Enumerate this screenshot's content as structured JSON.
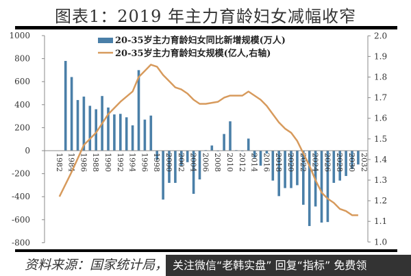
{
  "title": "图表1：2019 年主力育龄妇女减幅收窄",
  "source": "资料来源：国家统计局，",
  "overlay_text": "关注微信“老韩实盘” 回复“指标” 免费领",
  "colors": {
    "bar": "#4a7fa8",
    "line": "#d79a5c"
  },
  "chart_data": {
    "type": "bar+line",
    "title": "图表1：2019 年主力育龄妇女减幅收窄",
    "legend_position": "top-center",
    "grid": false,
    "left_axis": {
      "ylim": [
        -800,
        1000
      ],
      "ticks": [
        1000,
        800,
        600,
        400,
        200,
        0,
        -200,
        -400,
        -600,
        -800
      ]
    },
    "right_axis": {
      "ylim": [
        1.0,
        2.0
      ],
      "ticks": [
        "2.0",
        "1.9",
        "1.8",
        "1.7",
        "1.6",
        "1.5",
        "1.4",
        "1.3",
        "1.2",
        "1.1",
        "1.0"
      ]
    },
    "x_tick_labels": [
      "1982",
      "1984",
      "1986",
      "1988",
      "1990",
      "1992",
      "1994",
      "1996",
      "1998",
      "2000",
      "2002",
      "2004",
      "2006",
      "2008",
      "2010",
      "2012",
      "2014",
      "2016",
      "2018",
      "2020",
      "2022",
      "2024",
      "2026",
      "2028",
      "2030",
      "2032"
    ],
    "series": [
      {
        "name": "20-35岁主力育龄妇女同比新增规模(万人)",
        "type": "bar",
        "axis": "left",
        "x": [
          1983,
          1984,
          1985,
          1986,
          1987,
          1988,
          1989,
          1990,
          1991,
          1992,
          1993,
          1994,
          1995,
          1996,
          1997,
          1998,
          1999,
          2000,
          2001,
          2002,
          2003,
          2004,
          2005,
          2006,
          2007,
          2008,
          2009,
          2010,
          2011,
          2012,
          2013,
          2014,
          2015,
          2016,
          2017,
          2018,
          2019,
          2020,
          2021,
          2022,
          2023,
          2024,
          2025,
          2026,
          2027,
          2028,
          2029,
          2030,
          2031
        ],
        "values": [
          780,
          640,
          440,
          470,
          390,
          360,
          475,
          375,
          315,
          320,
          290,
          220,
          700,
          270,
          305,
          -80,
          -425,
          -280,
          -280,
          -130,
          -100,
          -375,
          -250,
          5,
          45,
          -5,
          145,
          255,
          5,
          -5,
          105,
          -60,
          -130,
          -25,
          -260,
          -395,
          -325,
          -325,
          -300,
          -470,
          -655,
          -485,
          -625,
          -620,
          -280,
          -260,
          -220,
          -160,
          -120
        ]
      },
      {
        "name": "20-35岁主力育龄妇女规模(亿人,右轴)",
        "type": "line",
        "axis": "right",
        "x": [
          1982,
          1984,
          1986,
          1988,
          1990,
          1992,
          1994,
          1995,
          1996,
          1997,
          1998,
          1999,
          2000,
          2001,
          2002,
          2003,
          2004,
          2005,
          2006,
          2008,
          2009,
          2010,
          2011,
          2012,
          2013,
          2014,
          2015,
          2016,
          2017,
          2018,
          2019,
          2020,
          2021,
          2022,
          2023,
          2024,
          2025,
          2026,
          2027,
          2028,
          2029,
          2030,
          2031
        ],
        "values": [
          1.22,
          1.34,
          1.47,
          1.53,
          1.62,
          1.68,
          1.73,
          1.8,
          1.83,
          1.86,
          1.85,
          1.81,
          1.78,
          1.75,
          1.74,
          1.72,
          1.69,
          1.67,
          1.67,
          1.68,
          1.7,
          1.71,
          1.71,
          1.71,
          1.73,
          1.71,
          1.69,
          1.66,
          1.62,
          1.58,
          1.55,
          1.53,
          1.49,
          1.43,
          1.37,
          1.3,
          1.24,
          1.21,
          1.19,
          1.16,
          1.15,
          1.13,
          1.13
        ]
      }
    ]
  }
}
